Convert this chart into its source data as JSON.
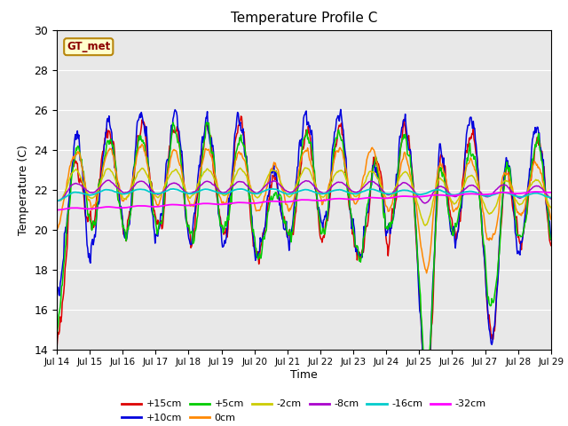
{
  "title": "Temperature Profile C",
  "xlabel": "Time",
  "ylabel": "Temperature (C)",
  "ylim": [
    14,
    30
  ],
  "yticks": [
    14,
    16,
    18,
    20,
    22,
    24,
    26,
    28,
    30
  ],
  "x_tick_labels": [
    "Jul 14",
    "Jul 15",
    "Jul 16",
    "Jul 17",
    "Jul 18",
    "Jul 19",
    "Jul 20",
    "Jul 21",
    "Jul 22",
    "Jul 23",
    "Jul 24",
    "Jul 25",
    "Jul 26",
    "Jul 27",
    "Jul 28",
    "Jul 29"
  ],
  "series_labels": [
    "+15cm",
    "+10cm",
    "+5cm",
    "0cm",
    "-2cm",
    "-8cm",
    "-16cm",
    "-32cm"
  ],
  "series_colors": [
    "#dd0000",
    "#0000dd",
    "#00cc00",
    "#ff8800",
    "#cccc00",
    "#aa00cc",
    "#00cccc",
    "#ff00ff"
  ],
  "gt_met_text": "GT_met",
  "background_color": "#e8e8e8",
  "title_fontsize": 11,
  "figsize": [
    6.4,
    4.8
  ],
  "dpi": 100
}
